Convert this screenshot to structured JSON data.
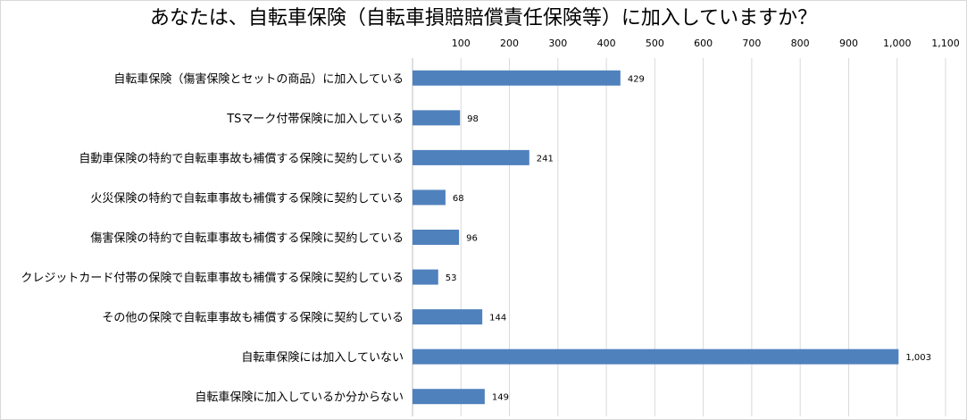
{
  "chart_data": {
    "type": "bar",
    "orientation": "horizontal",
    "title": "あなたは、自転車保険（自転車損賠賠償責任保険等）に加入していますか？",
    "categories": [
      "自転車保険（傷害保険とセットの商品）に加入している",
      "TSマーク付帯保険に加入している",
      "自動車保険の特約で自転車事故も補償する保険に契約している",
      "火災保険の特約で自転車事故も補償する保険に契約している",
      "傷害保険の特約で自転車事故も補償する保険に契約している",
      "クレジットカード付帯の保険で自転車事故も補償する保険に契約している",
      "その他の保険で自転車事故も補償する保険に契約している",
      "自転車保険には加入していない",
      "自転車保険に加入しているか分からない"
    ],
    "values": [
      429,
      98,
      241,
      68,
      96,
      53,
      144,
      1003,
      149
    ],
    "data_labels": [
      "429",
      "98",
      "241",
      "68",
      "96",
      "53",
      "144",
      "1,003",
      "149"
    ],
    "xlim": [
      0,
      1100
    ],
    "ticks": [
      100,
      200,
      300,
      400,
      500,
      600,
      700,
      800,
      900,
      1000,
      1100
    ],
    "tick_labels": [
      "100",
      "200",
      "300",
      "400",
      "500",
      "600",
      "700",
      "800",
      "900",
      "1,000",
      "1,100"
    ],
    "axis_position": "top",
    "grid": true,
    "bar_color": "#4f81bd",
    "grid_color": "#d9d9d9"
  }
}
